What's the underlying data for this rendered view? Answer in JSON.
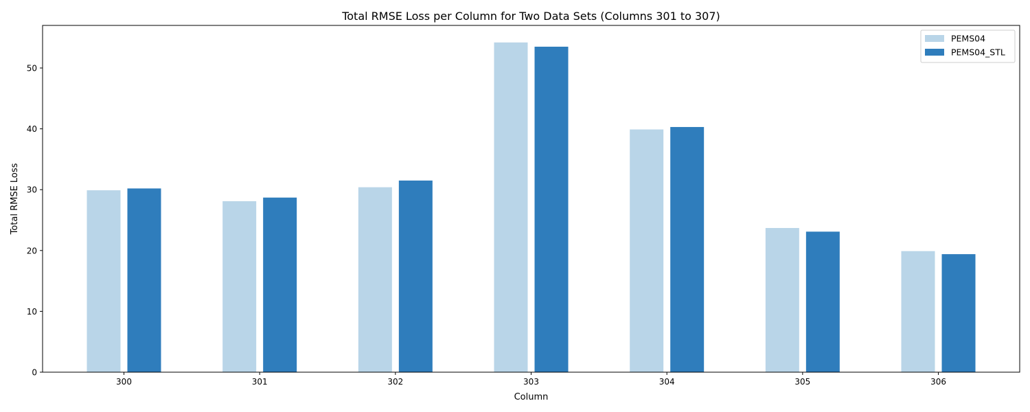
{
  "chart_data": {
    "type": "bar",
    "title": "Total RMSE Loss per Column for Two Data Sets (Columns 301 to 307)",
    "xlabel": "Column",
    "ylabel": "Total RMSE Loss",
    "categories": [
      "300",
      "301",
      "302",
      "303",
      "304",
      "305",
      "306"
    ],
    "series": [
      {
        "name": "PEMS04",
        "color": "#b9d5e8",
        "values": [
          29.9,
          28.1,
          30.4,
          54.2,
          39.9,
          23.7,
          19.9
        ]
      },
      {
        "name": "PEMS04_STL",
        "color": "#2f7dbc",
        "values": [
          30.2,
          28.7,
          31.5,
          53.5,
          40.3,
          23.1,
          19.4
        ]
      }
    ],
    "ylim": [
      0,
      57
    ],
    "yticks": [
      0,
      10,
      20,
      30,
      40,
      50
    ],
    "grid": false,
    "legend_position": "top-right"
  }
}
